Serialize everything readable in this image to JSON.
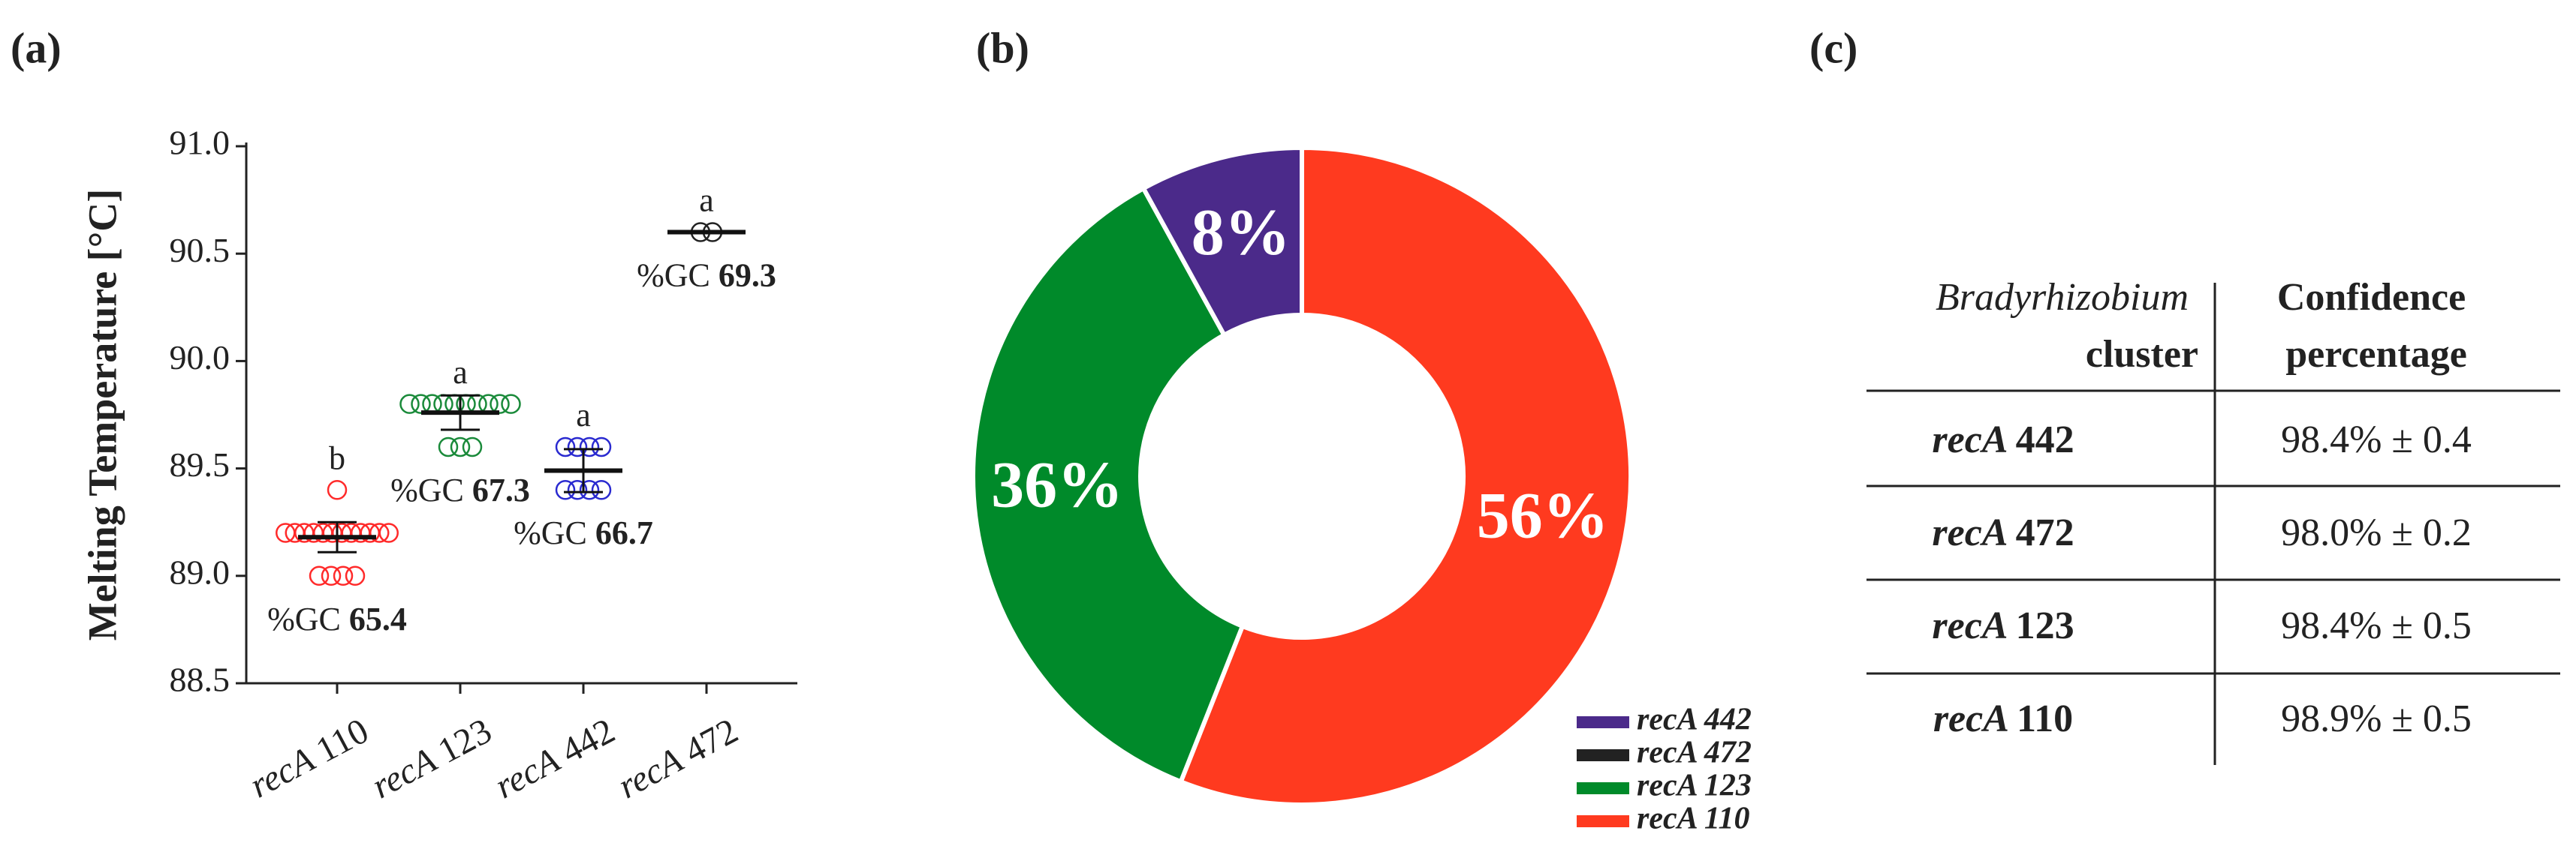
{
  "chart_data": [
    {
      "type": "scatter",
      "panel_label": "(a)",
      "ylabel": "Melting Temperature [°C]",
      "categories": [
        "recA 110",
        "recA 123",
        "recA 442",
        "recA 472"
      ],
      "ylim": [
        88.5,
        91
      ],
      "yticks": [
        88.5,
        {
          "value": 89,
          "label": "89.0"
        },
        89.5,
        {
          "value": 90,
          "label": "90.0"
        },
        90.5,
        {
          "value": 91,
          "label": "91.0"
        }
      ],
      "series": [
        {
          "name": "recA 110",
          "color": "#ff2a2a",
          "values": [
            89.4,
            89.2,
            89.2,
            89.2,
            89.2,
            89.2,
            89.2,
            89.2,
            89.2,
            89.2,
            89.2,
            89.2,
            89.2,
            89.0,
            89.0,
            89.0,
            89.0
          ]
        },
        {
          "name": "recA 123",
          "color": "#1a8a3a",
          "values": [
            89.8,
            89.8,
            89.8,
            89.8,
            89.8,
            89.8,
            89.8,
            89.8,
            89.8,
            89.8,
            89.6,
            89.6,
            89.6
          ]
        },
        {
          "name": "recA 442",
          "color": "#2a2ad0",
          "values": [
            89.6,
            89.6,
            89.6,
            89.6,
            89.4,
            89.4,
            89.4,
            89.4
          ]
        },
        {
          "name": "recA 472",
          "color": "#222222",
          "values": [
            90.6,
            90.6
          ]
        }
      ],
      "means": [
        89.18,
        89.76,
        89.49,
        90.6
      ],
      "errors": [
        0.07,
        0.08,
        0.1,
        0
      ],
      "letters": [
        "b",
        "a",
        "a",
        "a"
      ],
      "gc_labels": [
        "%GC 65.4",
        "%GC 67.3",
        "%GC 66.7",
        "%GC 69.3"
      ]
    },
    {
      "type": "pie",
      "panel_label": "(b)",
      "categories": [
        "recA 442",
        "recA 472",
        "recA 123",
        "recA 110"
      ],
      "values": [
        8,
        0,
        36,
        56
      ],
      "value_labels": [
        "8%",
        null,
        "36%",
        "56%"
      ],
      "colors": [
        "#4b2a8a",
        "#222222",
        "#008a2a",
        "#ff3a1f"
      ]
    }
  ],
  "table": {
    "panel_label": "(c)",
    "header": [
      "Bradyrhizobium cluster",
      "Confidence percentage"
    ],
    "rows": [
      [
        "recA 442",
        "98.4% ± 0.4"
      ],
      [
        "recA 472",
        "98.0% ± 0.2"
      ],
      [
        "recA 123",
        "98.4% ± 0.5"
      ],
      [
        "recA 110",
        "98.9% ± 0.5"
      ]
    ]
  }
}
